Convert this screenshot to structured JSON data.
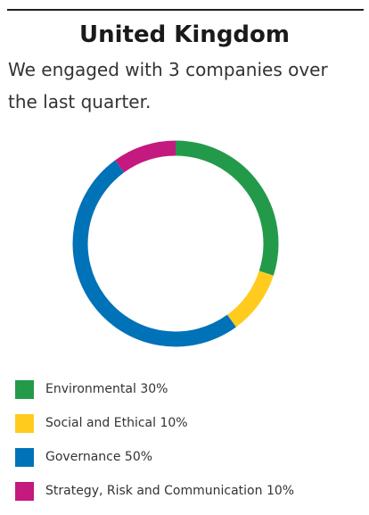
{
  "title": "United Kingdom",
  "summary_line1": "We engaged with 3 companies over",
  "summary_line2": "the last quarter.",
  "chart_data": {
    "type": "pie",
    "style": "donut",
    "categories": [
      "Environmental",
      "Social and Ethical",
      "Governance",
      "Strategy, Risk and Communication"
    ],
    "values": [
      30,
      10,
      50,
      10
    ],
    "unit": "%",
    "colors": [
      "#239A4A",
      "#FFCB1F",
      "#0072B7",
      "#C4197F"
    ],
    "legend": [
      {
        "label": "Environmental 30%",
        "color": "#239A4A"
      },
      {
        "label": "Social and Ethical 10%",
        "color": "#FFCB1F"
      },
      {
        "label": "Governance 50%",
        "color": "#0072B7"
      },
      {
        "label": "Strategy, Risk and Communication 10%",
        "color": "#C4197F"
      }
    ],
    "legend_position": "bottom"
  }
}
